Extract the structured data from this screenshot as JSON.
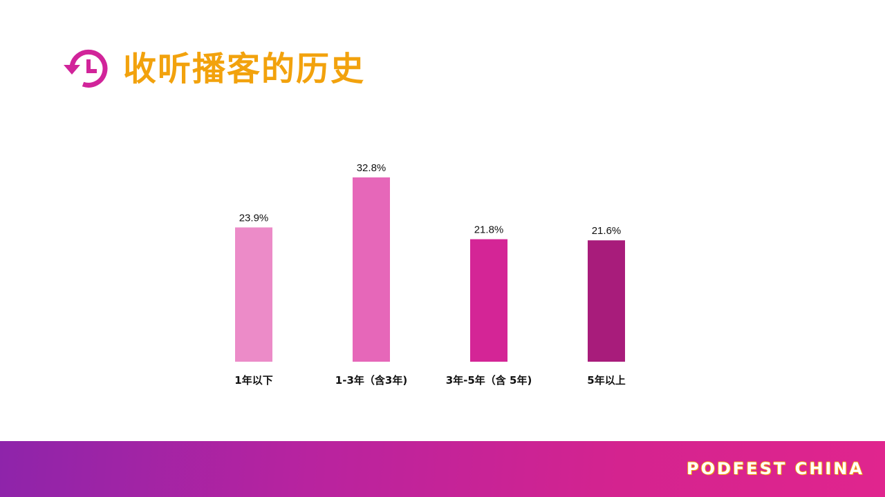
{
  "header": {
    "icon": "history-clock-icon",
    "title": "收听播客的历史"
  },
  "colors": {
    "title": "#F2A20D",
    "icon": "#D1249A",
    "footer_start": "#8E24AA",
    "footer_end": "#E0258E"
  },
  "chart_data": {
    "type": "bar",
    "categories": [
      "1年以下",
      "1-3年（含3年)",
      "3年-5年（含 5年)",
      "5年以上"
    ],
    "values": [
      23.9,
      32.8,
      21.8,
      21.6
    ],
    "value_labels": [
      "23.9%",
      "32.8%",
      "21.8%",
      "21.6%"
    ],
    "bar_colors": [
      "#EC8BC8",
      "#E667B9",
      "#D42596",
      "#A81C7B"
    ],
    "ylim": [
      0,
      32.8
    ],
    "grid": false,
    "legend": "none"
  },
  "footer": {
    "brand": "PODFEST CHINA"
  }
}
